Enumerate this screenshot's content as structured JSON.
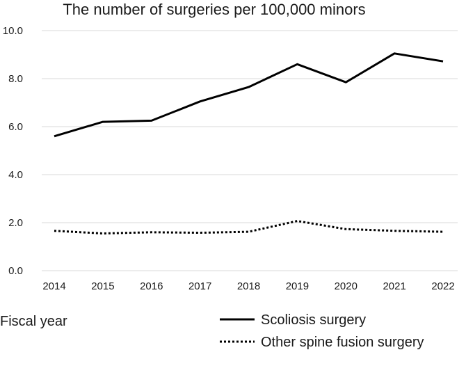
{
  "chart_data": {
    "type": "line",
    "title": "The number of surgeries per 100,000 minors",
    "xlabel": "Fiscal year",
    "ylabel": "",
    "categories": [
      "2014",
      "2015",
      "2016",
      "2017",
      "2018",
      "2019",
      "2020",
      "2021",
      "2022"
    ],
    "ylim": [
      0,
      10
    ],
    "yticks": [
      "0.0",
      "2.0",
      "4.0",
      "6.0",
      "8.0",
      "10.0"
    ],
    "grid": true,
    "legend_position": "bottom-right",
    "series": [
      {
        "name": "Scoliosis surgery",
        "line_style": "solid",
        "color": "#000000",
        "values": [
          5.6,
          6.2,
          6.25,
          7.05,
          7.65,
          8.6,
          7.85,
          9.05,
          8.72
        ]
      },
      {
        "name": "Other spine fusion surgery",
        "line_style": "dotted",
        "color": "#000000",
        "values": [
          1.66,
          1.55,
          1.6,
          1.58,
          1.62,
          2.07,
          1.73,
          1.66,
          1.62
        ]
      }
    ]
  }
}
